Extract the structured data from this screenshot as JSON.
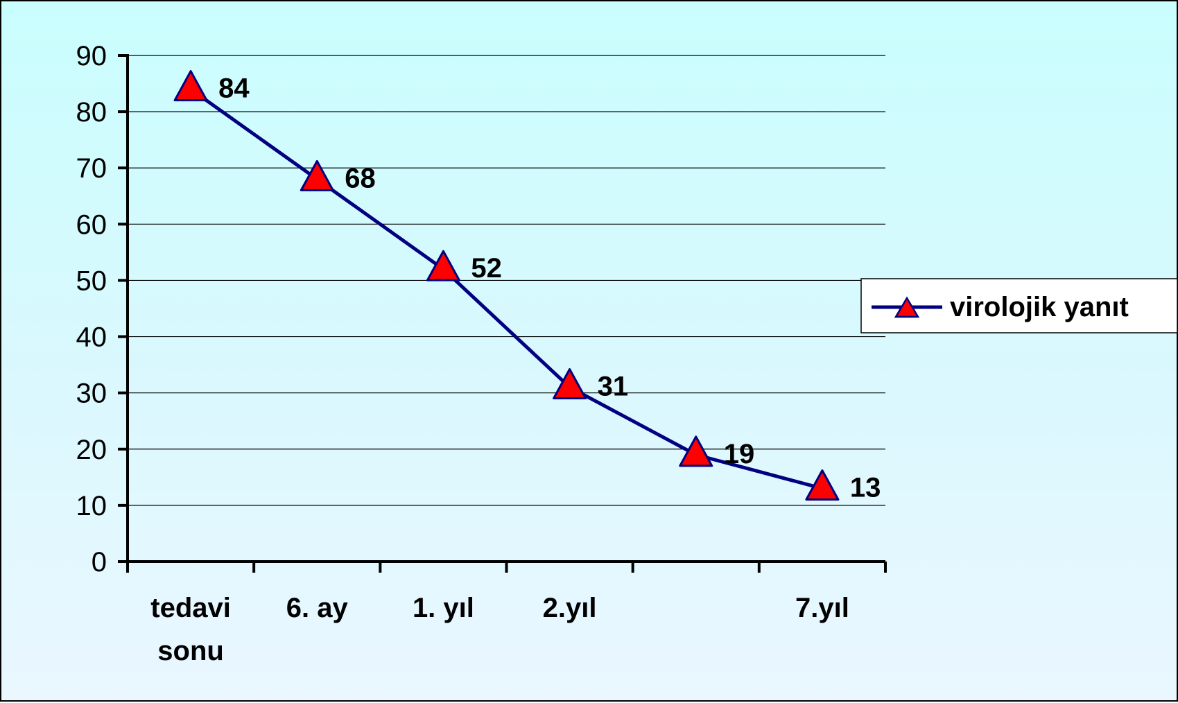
{
  "chart_data": {
    "type": "line",
    "categories": [
      "tedavi sonu",
      "6. ay",
      "1. yıl",
      "2.yıl",
      "",
      "7.yıl"
    ],
    "series": [
      {
        "name": "virolojik yanıt",
        "values": [
          84,
          68,
          52,
          31,
          19,
          13
        ],
        "color": "#000080",
        "marker": "triangle",
        "marker_color": "#ff0000"
      }
    ],
    "data_labels": [
      "84",
      "68",
      "52",
      "31",
      "19",
      "13"
    ],
    "y_ticks": [
      "0",
      "10",
      "20",
      "30",
      "40",
      "50",
      "60",
      "70",
      "80",
      "90"
    ],
    "ylim": [
      0,
      90
    ],
    "grid": true,
    "legend_position": "right",
    "title": "",
    "xlabel": "",
    "ylabel": ""
  }
}
